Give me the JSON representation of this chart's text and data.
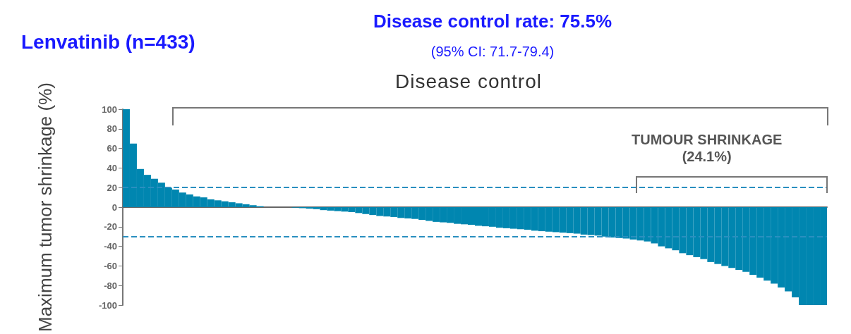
{
  "chart_data": {
    "type": "bar",
    "title": "Disease control rate: 75.5%",
    "subtitle": "(95% CI: 71.7-79.4)",
    "ylabel": "Maximum tumor shrinkage (%)",
    "annotations": [
      "Lenvatinib (n=433)",
      "Disease control",
      "TUMOUR SHRINKAGE\n(24.1%)"
    ],
    "categories": [
      null,
      null,
      null,
      null,
      null,
      null,
      null,
      null,
      null,
      null,
      null,
      null,
      null,
      null,
      null,
      null,
      null,
      null,
      null,
      null,
      null,
      null,
      null,
      null,
      null,
      null,
      null,
      null,
      null,
      null,
      null,
      null,
      null,
      null,
      null,
      null,
      null,
      null,
      null,
      null,
      null,
      null,
      null,
      null,
      null,
      null,
      null,
      null,
      null,
      null,
      null,
      null,
      null,
      null,
      null,
      null,
      null,
      null,
      null,
      null,
      null,
      null,
      null,
      null,
      null,
      null,
      null,
      null,
      null,
      null,
      null,
      null,
      null,
      null,
      null,
      null,
      null,
      null,
      null,
      null,
      null,
      null,
      null,
      null,
      null,
      null,
      null,
      null,
      null,
      null,
      null,
      null,
      null,
      null,
      null,
      null,
      null,
      null,
      null,
      null
    ],
    "values": [
      100,
      65,
      39,
      33,
      29,
      25,
      20,
      18,
      15,
      13,
      11,
      10,
      8,
      7,
      6,
      5,
      4,
      3,
      2,
      1,
      0,
      0,
      0,
      0,
      -0.5,
      -1,
      -1.5,
      -2,
      -3,
      -3.5,
      -4,
      -4.5,
      -5,
      -6,
      -7,
      -8,
      -9,
      -9.5,
      -10,
      -11,
      -11.5,
      -12,
      -13,
      -14,
      -15,
      -15.5,
      -16,
      -17,
      -17.5,
      -18,
      -19,
      -19.5,
      -20,
      -21,
      -21.5,
      -22,
      -22.5,
      -23,
      -24,
      -24.5,
      -25,
      -25.5,
      -26,
      -26.5,
      -27,
      -28,
      -28.5,
      -29,
      -30,
      -31,
      -31.5,
      -32,
      -33,
      -34,
      -35,
      -37,
      -40,
      -42,
      -44,
      -47,
      -49,
      -51,
      -53,
      -56,
      -58,
      -60,
      -62,
      -64,
      -66,
      -69,
      -72,
      -75,
      -78,
      -82,
      -86,
      -92,
      -100,
      -100,
      -100,
      -100
    ],
    "color": "#0086b0",
    "ylim": [
      -100,
      100
    ],
    "yticks": [
      -100,
      -80,
      -60,
      -40,
      -20,
      0,
      20,
      40,
      60,
      80,
      100
    ],
    "grid": false,
    "ref_lines": [
      {
        "axis": "y",
        "value": 20,
        "color": "#2a8fc0",
        "line_style": "dashed"
      },
      {
        "axis": "y",
        "value": -30,
        "color": "#2a8fc0",
        "line_style": "dashed"
      }
    ]
  }
}
